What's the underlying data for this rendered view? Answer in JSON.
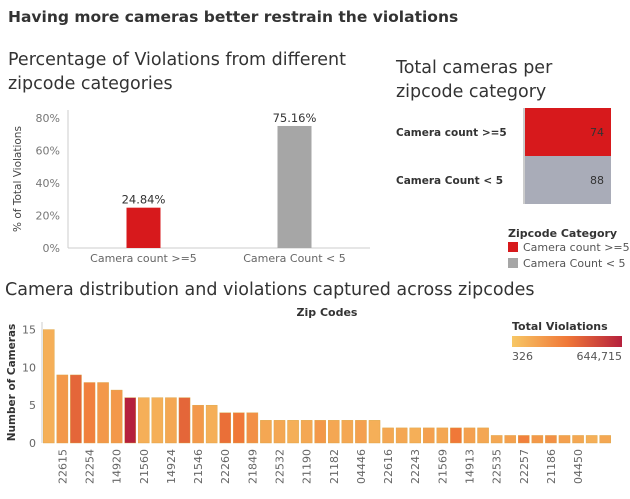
{
  "dashboard_title": "Having more cameras better restrain the violations",
  "colors": {
    "red": "#d7191c",
    "gray": "#a6a6a6",
    "camera_gray": "#a9acb8",
    "seq_low": "#f7c765",
    "seq_mid": "#f07838",
    "seq_high": "#b5203c"
  },
  "pct_chart": {
    "title": "Percentage of Violations from different zipcode categories",
    "chart_data": {
      "type": "bar",
      "categories": [
        "Camera count >=5",
        "Camera Count < 5"
      ],
      "values": [
        24.84,
        75.16
      ],
      "value_labels": [
        "24.84%",
        "75.16%"
      ],
      "colors": [
        "#d7191c",
        "#a6a6a6"
      ],
      "ylabel": "% of Total Violations",
      "yticks": [
        "0%",
        "20%",
        "40%",
        "60%",
        "80%"
      ],
      "ylim": [
        0,
        85
      ]
    }
  },
  "cameras_chart": {
    "title": "Total cameras  per zipcode category",
    "chart_data": {
      "type": "table",
      "rows": [
        {
          "label": "Camera count >=5",
          "value": 74,
          "color": "#d7191c"
        },
        {
          "label": "Camera Count < 5",
          "value": 88,
          "color": "#a9acb8"
        }
      ]
    },
    "legend_title": "Zipcode Category",
    "legend_items": [
      {
        "label": "Camera count >=5",
        "color": "#d7191c"
      },
      {
        "label": "Camera Count < 5",
        "color": "#a6a6a6"
      }
    ]
  },
  "dist_chart": {
    "title": "Camera distribution and violations captured across zipcodes",
    "chart_data": {
      "type": "bar",
      "xlabel": "Zip Codes",
      "ylabel": "Number of Cameras",
      "ylim": [
        0,
        16
      ],
      "yticks": [
        0,
        5,
        10,
        15
      ],
      "x_tick_labels": [
        "22615",
        "22254",
        "14920",
        "21560",
        "14924",
        "21546",
        "22260",
        "21849",
        "22532",
        "21190",
        "21182",
        "04446",
        "22616",
        "22243",
        "21569",
        "14913",
        "22535",
        "22257",
        "21186",
        "04450"
      ],
      "values": [
        15,
        9,
        9,
        8,
        8,
        7,
        6,
        6,
        6,
        6,
        6,
        5,
        5,
        4,
        4,
        4,
        3,
        3,
        3,
        3,
        3,
        3,
        3,
        3,
        3,
        2,
        2,
        2,
        2,
        2,
        2,
        2,
        2,
        1,
        1,
        1,
        1,
        1,
        1,
        1,
        1,
        1
      ],
      "violation_level": [
        0.15,
        0.3,
        0.6,
        0.45,
        0.3,
        0.3,
        1.0,
        0.15,
        0.15,
        0.2,
        0.6,
        0.3,
        0.15,
        0.55,
        0.5,
        0.35,
        0.2,
        0.2,
        0.15,
        0.2,
        0.3,
        0.2,
        0.2,
        0.25,
        0.15,
        0.2,
        0.2,
        0.15,
        0.25,
        0.2,
        0.5,
        0.25,
        0.2,
        0.2,
        0.25,
        0.45,
        0.3,
        0.35,
        0.25,
        0.2,
        0.15,
        0.2
      ],
      "legend": {
        "title": "Total Violations",
        "min_label": "326",
        "max_label": "644,715"
      }
    }
  }
}
